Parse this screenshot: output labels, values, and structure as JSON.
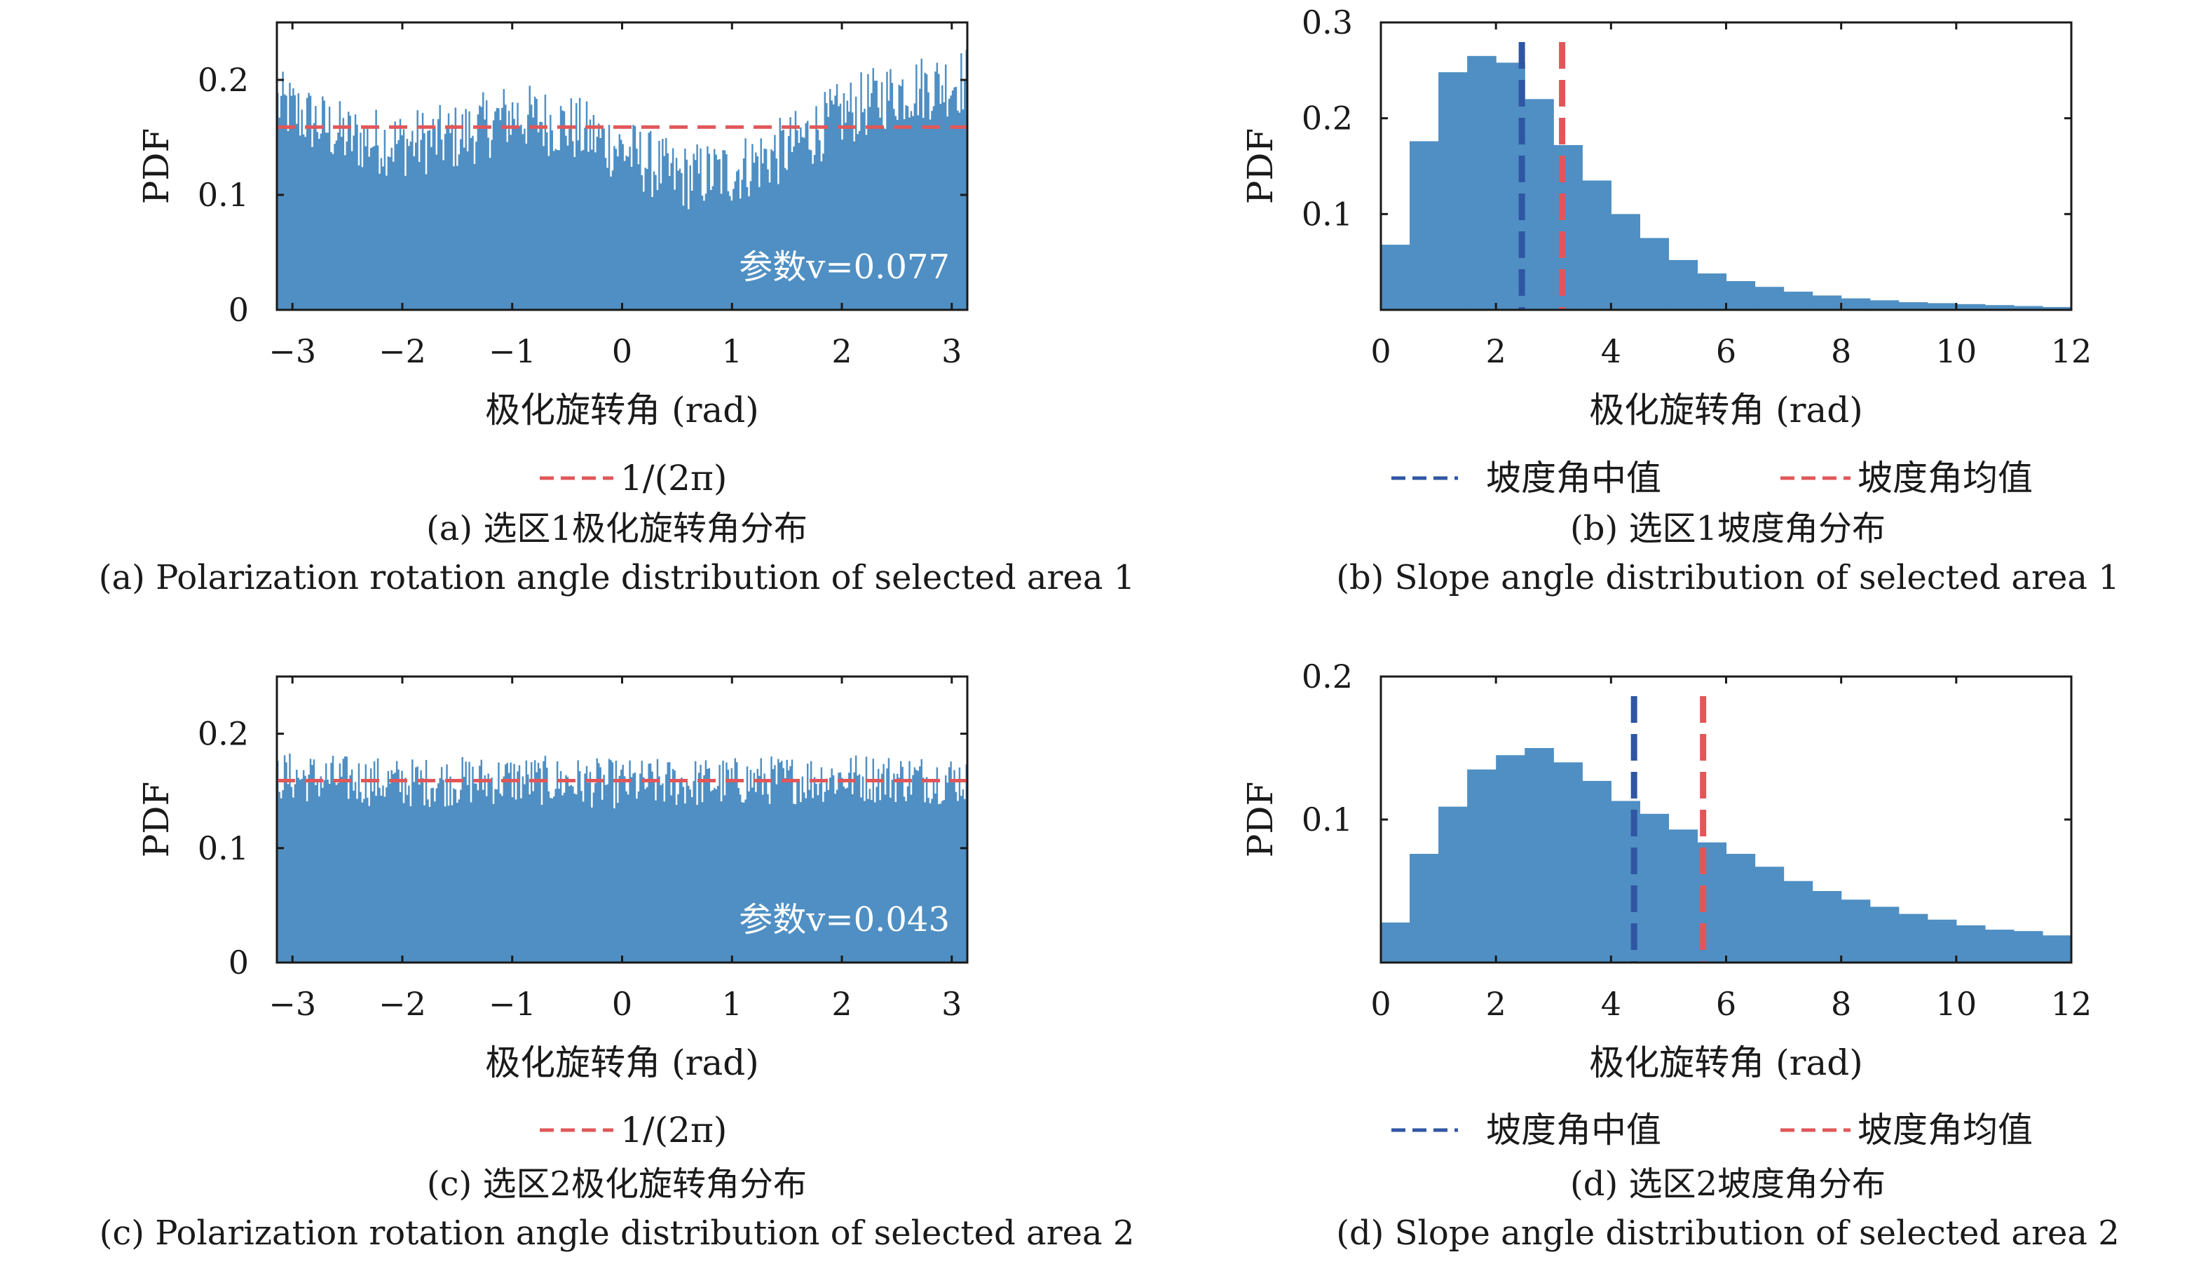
{
  "figure": {
    "colors": {
      "bar": "#4f8fc3",
      "median": "#2f56a3",
      "mean": "#e15759",
      "ref": "#e15759",
      "frame": "#1a1a1a"
    }
  },
  "chart_data": [
    {
      "type": "bar",
      "panel": "a",
      "xlabel": "极化旋转角 (rad)",
      "ylabel": "PDF",
      "xlim": [
        -3.1416,
        3.1416
      ],
      "ylim": [
        0,
        0.25
      ],
      "xticks": [
        "−3",
        "−2",
        "−1",
        "0",
        "1",
        "2",
        "3"
      ],
      "yticks": [
        "0",
        "0.1",
        "0.2"
      ],
      "annotation": "参数v=0.077",
      "legend": [
        "1/(2π)"
      ],
      "reference_line": 0.159,
      "profile": {
        "x": [
          -3.1416,
          -2.5,
          -2.0,
          -1.5,
          -1.0,
          -0.5,
          0.0,
          0.5,
          1.0,
          1.5,
          2.0,
          2.5,
          3.1416
        ],
        "y": [
          0.18,
          0.15,
          0.145,
          0.15,
          0.17,
          0.16,
          0.14,
          0.115,
          0.12,
          0.14,
          0.17,
          0.19,
          0.2
        ]
      },
      "noise": 0.03,
      "bins": 400,
      "caption_cn": "(a) 选区1极化旋转角分布",
      "caption_en": "(a) Polarization rotation angle distribution of selected area 1"
    },
    {
      "type": "bar",
      "panel": "b",
      "xlabel": "极化旋转角 (rad)",
      "ylabel": "PDF",
      "xlim": [
        0,
        12
      ],
      "ylim": [
        0,
        0.3
      ],
      "xticks": [
        "0",
        "2",
        "4",
        "6",
        "8",
        "10",
        "12"
      ],
      "yticks": [
        "0.1",
        "0.2",
        "0.3"
      ],
      "legend": [
        "坡度角中值",
        "坡度角均值"
      ],
      "bin_width": 0.5,
      "values": [
        0.068,
        0.176,
        0.248,
        0.265,
        0.258,
        0.22,
        0.172,
        0.135,
        0.1,
        0.075,
        0.052,
        0.038,
        0.03,
        0.024,
        0.019,
        0.015,
        0.012,
        0.01,
        0.008,
        0.007,
        0.006,
        0.005,
        0.004,
        0.003
      ],
      "median": 2.45,
      "mean": 3.15,
      "caption_cn": "(b) 选区1坡度角分布",
      "caption_en": "(b) Slope angle distribution of selected area 1"
    },
    {
      "type": "bar",
      "panel": "c",
      "xlabel": "极化旋转角 (rad)",
      "ylabel": "PDF",
      "xlim": [
        -3.1416,
        3.1416
      ],
      "ylim": [
        0,
        0.25
      ],
      "xticks": [
        "−3",
        "−2",
        "−1",
        "0",
        "1",
        "2",
        "3"
      ],
      "yticks": [
        "0",
        "0.1",
        "0.2"
      ],
      "annotation": "参数v=0.043",
      "legend": [
        "1/(2π)"
      ],
      "reference_line": 0.159,
      "profile": {
        "x": [
          -3.1416,
          -2.0,
          -1.0,
          0.0,
          1.0,
          2.0,
          3.1416
        ],
        "y": [
          0.163,
          0.157,
          0.16,
          0.156,
          0.158,
          0.162,
          0.16
        ]
      },
      "noise": 0.022,
      "bins": 400,
      "caption_cn": "(c) 选区2极化旋转角分布",
      "caption_en": "(c) Polarization rotation angle distribution of selected area 2"
    },
    {
      "type": "bar",
      "panel": "d",
      "xlabel": "极化旋转角 (rad)",
      "ylabel": "PDF",
      "xlim": [
        0,
        12
      ],
      "ylim": [
        0,
        0.2
      ],
      "xticks": [
        "0",
        "2",
        "4",
        "6",
        "8",
        "10",
        "12"
      ],
      "yticks": [
        "0.1",
        "0.2"
      ],
      "legend": [
        "坡度角中值",
        "坡度角均值"
      ],
      "bin_width": 0.5,
      "values": [
        0.028,
        0.076,
        0.109,
        0.135,
        0.145,
        0.15,
        0.14,
        0.127,
        0.113,
        0.104,
        0.093,
        0.084,
        0.076,
        0.067,
        0.057,
        0.05,
        0.044,
        0.039,
        0.034,
        0.03,
        0.026,
        0.023,
        0.022,
        0.019
      ],
      "median": 4.4,
      "mean": 5.6,
      "caption_cn": "(d) 选区2坡度角分布",
      "caption_en": "(d) Slope angle distribution of selected area 2"
    }
  ]
}
